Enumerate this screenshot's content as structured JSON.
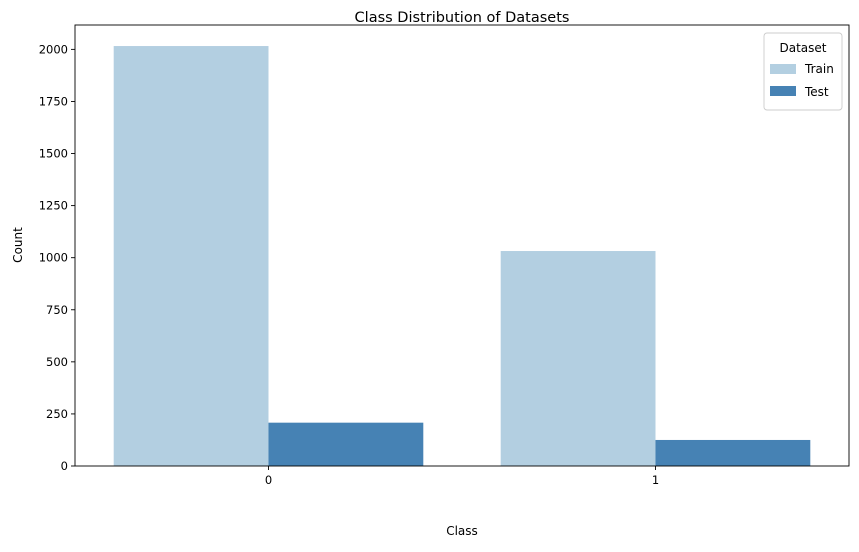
{
  "chart_data": {
    "type": "bar",
    "title": "Class Distribution of Datasets",
    "xlabel": "Class",
    "ylabel": "Count",
    "categories": [
      "0",
      "1"
    ],
    "series": [
      {
        "name": "Train",
        "color": "#b3cfe1",
        "values": [
          2016,
          1032
        ]
      },
      {
        "name": "Test",
        "color": "#4682b4",
        "values": [
          208,
          125
        ]
      }
    ],
    "ylim": [
      0,
      2117
    ],
    "yticks": [
      0,
      250,
      500,
      750,
      1000,
      1250,
      1500,
      1750,
      2000
    ],
    "legend": {
      "title": "Dataset",
      "placement": "top-right"
    },
    "grid": false
  }
}
